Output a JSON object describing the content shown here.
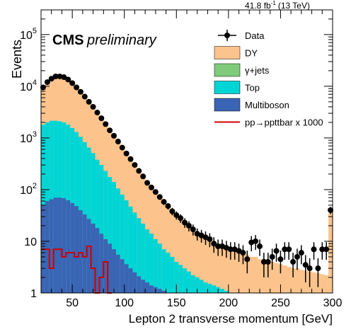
{
  "header": {
    "lumi": "41.8 fb",
    "lumi_sup": "-1",
    "energy": "(13 TeV)",
    "experiment": "CMS",
    "status": "preliminary"
  },
  "chart_data": {
    "type": "bar",
    "xlabel": "Lepton 2 transverse momentum [GeV]",
    "ylabel": "Events",
    "xlim": [
      20,
      300
    ],
    "ylim": [
      1,
      300000
    ],
    "yscale": "log",
    "bin_width": 4,
    "xticks": [
      50,
      100,
      150,
      200,
      250,
      300
    ],
    "yticks": [
      {
        "v": 1,
        "label": "1"
      },
      {
        "v": 10,
        "label": "10"
      },
      {
        "v": 100,
        "label": "10",
        "sup": "2"
      },
      {
        "v": 1000,
        "label": "10",
        "sup": "3"
      },
      {
        "v": 10000,
        "label": "10",
        "sup": "4"
      },
      {
        "v": 100000,
        "label": "10",
        "sup": "5"
      }
    ],
    "legend_position": "top-right",
    "legend": [
      {
        "key": "data",
        "label": "Data",
        "style": "marker"
      },
      {
        "key": "dy",
        "label": "DY",
        "style": "fill",
        "color": "#fcc38c"
      },
      {
        "key": "gjets",
        "label": "γ+jets",
        "style": "fill",
        "color": "#7ecb7b"
      },
      {
        "key": "top",
        "label": "Top",
        "style": "fill",
        "color": "#00d5d5"
      },
      {
        "key": "multiboson",
        "label": "Multiboson",
        "style": "fill",
        "color": "#3a64b4"
      },
      {
        "key": "signal",
        "label": "pp→ppttbar x 1000",
        "style": "line",
        "color": "#d00000"
      }
    ],
    "bin_edges_start": [
      20,
      24,
      28,
      32,
      36,
      40,
      44,
      48,
      52,
      56,
      60,
      64,
      68,
      72,
      76,
      80,
      84,
      88,
      92,
      96,
      100,
      104,
      108,
      112,
      116,
      120,
      124,
      128,
      132,
      136,
      140,
      144,
      148,
      152,
      156,
      160,
      164,
      168,
      172,
      176,
      180,
      184,
      188,
      192,
      196,
      200,
      204,
      208,
      212,
      216,
      220,
      224,
      228,
      232,
      236,
      240,
      244,
      248,
      252,
      256,
      260,
      264,
      268,
      272,
      276,
      280,
      284,
      288,
      292,
      296
    ],
    "stack_totals": [
      9000,
      11000,
      13500,
      15000,
      15000,
      14500,
      13000,
      11500,
      9500,
      7800,
      6300,
      5000,
      4000,
      3100,
      2400,
      1850,
      1450,
      1100,
      860,
      660,
      510,
      390,
      300,
      235,
      180,
      140,
      110,
      87,
      70,
      56,
      45,
      37,
      31,
      26,
      22,
      19,
      17,
      15,
      13,
      12,
      11,
      10,
      9,
      8.5,
      8,
      7.5,
      7,
      6.5,
      6,
      5.5,
      5,
      5,
      4.5,
      4.5,
      4,
      4,
      3.8,
      3.6,
      3.4,
      3.2,
      3,
      3,
      2.8,
      2.7,
      2.6,
      2.5,
      2.4,
      2.3,
      2.2,
      35
    ],
    "top_totals": [
      1800,
      2000,
      2150,
      2150,
      2100,
      2000,
      1800,
      1550,
      1300,
      1050,
      830,
      650,
      510,
      380,
      300,
      230,
      175,
      140,
      105,
      80,
      62,
      47,
      36,
      28,
      22,
      17,
      14,
      11,
      9,
      7,
      6,
      5,
      4,
      3.5,
      3,
      2.6,
      2.2,
      2,
      1.8,
      1.6,
      1.5,
      1.4,
      1.3,
      1.2,
      1.1,
      1,
      1,
      1,
      1,
      1,
      1,
      1,
      1,
      1,
      1,
      1,
      1,
      1,
      1,
      1,
      1,
      1,
      1,
      1,
      1,
      1,
      1,
      1,
      1,
      1
    ],
    "multiboson": [
      50,
      60,
      65,
      70,
      70,
      68,
      62,
      55,
      48,
      40,
      33,
      27,
      22,
      18,
      14,
      11,
      9,
      7,
      5.5,
      4.5,
      3.6,
      3,
      2.5,
      2.1,
      1.8,
      1.6,
      1.4,
      1.3,
      1.2,
      1.1,
      1,
      1,
      1,
      1,
      1,
      1,
      1,
      1,
      1,
      1,
      1,
      1,
      1,
      1,
      1,
      1,
      1,
      1,
      1,
      1,
      1,
      1,
      1,
      1,
      1,
      1,
      1,
      1,
      1,
      1,
      1,
      1,
      1,
      1,
      1,
      1,
      1,
      1,
      1,
      1
    ],
    "data_x": [
      22,
      26,
      30,
      34,
      38,
      42,
      46,
      50,
      54,
      58,
      62,
      66,
      70,
      74,
      78,
      82,
      86,
      90,
      94,
      98,
      102,
      106,
      110,
      114,
      118,
      122,
      126,
      130,
      134,
      138,
      142,
      146,
      150,
      154,
      158,
      162,
      166,
      170,
      174,
      178,
      182,
      186,
      190,
      194,
      198,
      202,
      206,
      210,
      214,
      218,
      222,
      226,
      230,
      234,
      238,
      242,
      246,
      250,
      254,
      258,
      262,
      266,
      270,
      274,
      278,
      282,
      286,
      290,
      294,
      298
    ],
    "data_y": [
      9500,
      12000,
      14000,
      15500,
      15500,
      15000,
      13500,
      11500,
      9500,
      7800,
      6300,
      5000,
      4000,
      3100,
      2400,
      1850,
      1400,
      1100,
      850,
      650,
      500,
      390,
      300,
      230,
      180,
      135,
      110,
      90,
      72,
      58,
      48,
      38,
      32,
      28,
      23,
      20,
      17,
      14,
      13,
      12,
      11,
      9,
      8,
      8,
      7.5,
      7,
      7,
      6.5,
      6,
      4.5,
      9.5,
      10,
      8,
      4,
      4,
      5,
      6.5,
      4.5,
      7,
      7,
      4,
      5,
      6,
      3.5,
      3,
      7,
      3,
      7,
      7,
      40
    ],
    "data_err": [
      95,
      110,
      120,
      125,
      125,
      122,
      116,
      107,
      97,
      88,
      79,
      71,
      63,
      56,
      49,
      43,
      37,
      33,
      29,
      25,
      22,
      20,
      17,
      15,
      13,
      12,
      10,
      9.5,
      8.5,
      7.6,
      6.9,
      6.2,
      5.7,
      5.3,
      4.8,
      4.5,
      4.1,
      3.7,
      3.6,
      3.5,
      3.3,
      3,
      2.8,
      2.8,
      2.7,
      2.6,
      2.6,
      2.5,
      2.4,
      2.1,
      3.1,
      3.2,
      2.8,
      2,
      2,
      2.2,
      2.5,
      2.1,
      2.6,
      2.6,
      2,
      2.2,
      2.4,
      1.9,
      1.7,
      2.6,
      1.7,
      2.6,
      2.6,
      6.3
    ],
    "signal_edges": [
      20,
      28,
      32,
      40,
      44,
      52,
      56,
      60,
      64,
      68,
      72,
      76,
      80,
      84,
      88
    ],
    "signal_values": [
      7,
      3,
      7,
      5,
      6,
      5,
      6,
      5,
      8,
      3,
      1,
      2,
      4,
      1
    ]
  }
}
